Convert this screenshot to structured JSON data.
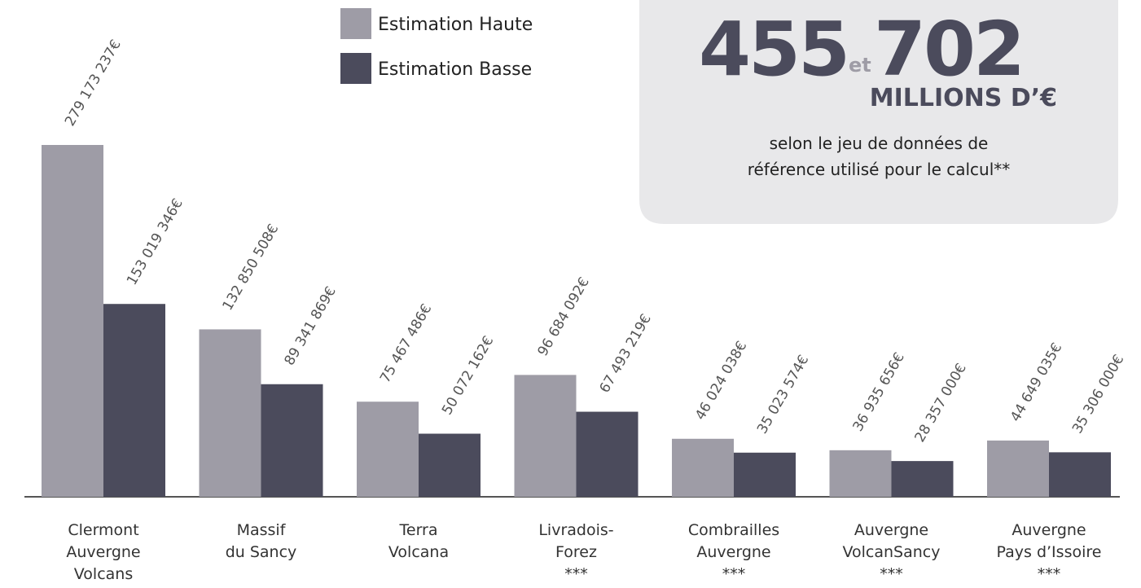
{
  "chart_data": {
    "type": "bar",
    "categories": [
      "Clermont\nAuvergne\nVolcans",
      "Massif\ndu Sancy",
      "Terra\nVolcana",
      "Livradois-\nForez\n***",
      "Combrailles\nAuvergne\n***",
      "Auvergne\nVolcanSancy\n***",
      "Auvergne\nPays d’Issoire\n***"
    ],
    "series": [
      {
        "name": "Estimation Haute",
        "color": "#9e9ca6",
        "values": [
          279173237,
          132850508,
          75467486,
          96684092,
          46024038,
          36935656,
          44649035
        ],
        "value_labels": [
          "279 173 237€",
          "132 850 508€",
          "75 467 486€",
          "96 684 092€",
          "46 024 038€",
          "36 935 656€",
          "44 649 035€"
        ]
      },
      {
        "name": "Estimation Basse",
        "color": "#4b4b5c",
        "values": [
          153019346,
          89341869,
          50072162,
          67493219,
          35023574,
          28357000,
          35306000
        ],
        "value_labels": [
          "153 019 346€",
          "89 341 869€",
          "50 072 162€",
          "67 493 219€",
          "35 023 574€",
          "28 357 000€",
          "35 306 000€"
        ]
      }
    ],
    "summary": {
      "low": "455",
      "connector": "et",
      "high": "702",
      "unit": "MILLIONS D’€",
      "note": "selon le jeu de données de\nréférence utilisé pour le calcul**"
    }
  }
}
